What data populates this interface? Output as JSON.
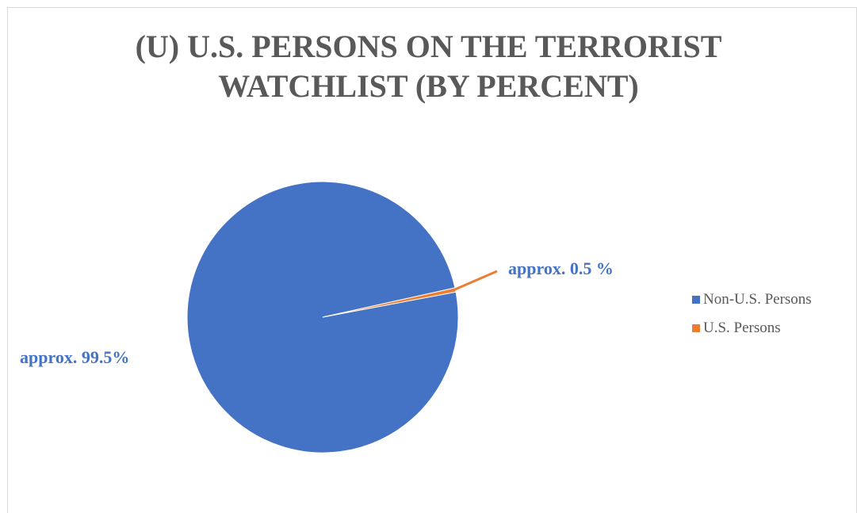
{
  "chart_data": {
    "type": "pie",
    "title_lines": [
      "(U) U.S. PERSONS ON THE TERRORIST",
      "WATCHLIST (BY PERCENT)"
    ],
    "categories": [
      "Non-U.S. Persons",
      "U.S. Persons"
    ],
    "values": [
      99.5,
      0.5
    ],
    "data_labels": [
      "approx. 99.5%",
      "approx. 0.5 %"
    ],
    "colors": [
      "#4472c4",
      "#ed7d31"
    ],
    "legend_placement": "right"
  }
}
